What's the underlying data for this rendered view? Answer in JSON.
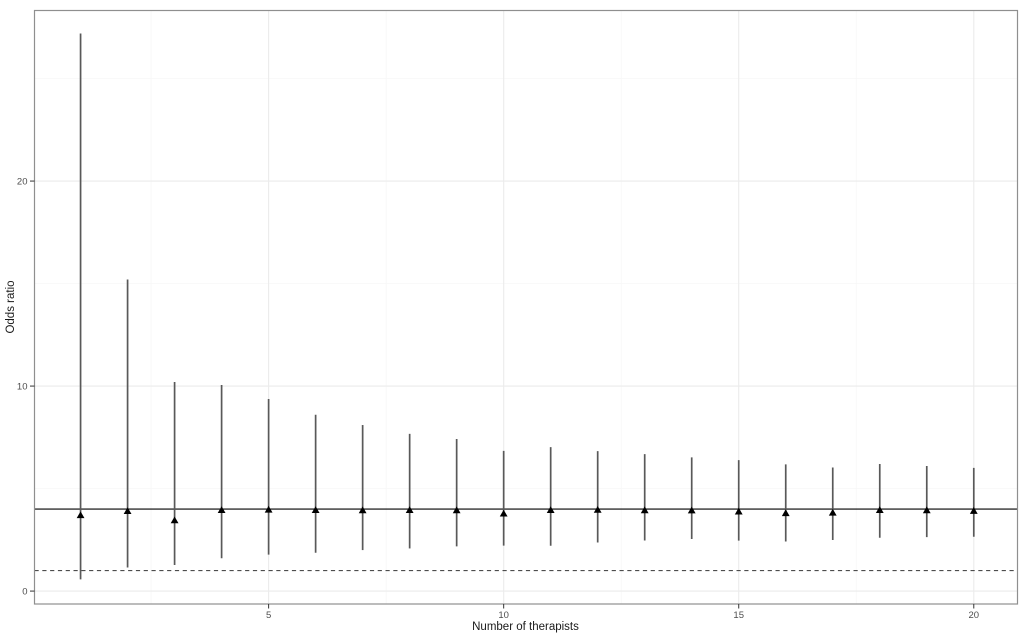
{
  "chart_data": {
    "type": "scatter",
    "subtype": "point-with-interval",
    "title": "",
    "xlabel": "Number of therapists",
    "ylabel": "Odds ratio",
    "x": [
      1,
      2,
      3,
      4,
      5,
      6,
      7,
      8,
      9,
      10,
      11,
      12,
      13,
      14,
      15,
      16,
      17,
      18,
      19,
      20
    ],
    "series": [
      {
        "name": "odds-ratio-estimate",
        "marker": "triangle-up",
        "values": [
          3.7,
          3.9,
          3.45,
          3.95,
          3.97,
          3.95,
          3.94,
          3.95,
          3.94,
          3.78,
          3.95,
          3.96,
          3.94,
          3.93,
          3.88,
          3.8,
          3.82,
          3.95,
          3.94,
          3.91
        ]
      }
    ],
    "ci_low": [
      0.57,
      1.15,
      1.27,
      1.6,
      1.78,
      1.87,
      2.0,
      2.08,
      2.18,
      2.22,
      2.21,
      2.37,
      2.47,
      2.54,
      2.46,
      2.42,
      2.49,
      2.6,
      2.63,
      2.65
    ],
    "ci_high": [
      27.2,
      15.2,
      10.2,
      10.05,
      9.37,
      8.6,
      8.1,
      7.67,
      7.42,
      6.84,
      7.02,
      6.83,
      6.68,
      6.52,
      6.39,
      6.18,
      6.03,
      6.2,
      6.1,
      6.01
    ],
    "reference_lines": [
      {
        "value": 4.0,
        "style": "solid",
        "color": "#000000"
      },
      {
        "value": 1.0,
        "style": "dashed",
        "color": "#4d4d4d"
      }
    ],
    "x_ticks": [
      5,
      10,
      15,
      20
    ],
    "y_ticks": [
      0,
      10,
      20
    ],
    "x_minor": [
      2.5,
      7.5,
      12.5,
      17.5
    ],
    "y_minor": [
      5,
      15,
      25
    ],
    "xlim": [
      0.02,
      20.93
    ],
    "ylim": [
      -0.63,
      28.32
    ],
    "grid": "on",
    "legend_position": "none"
  },
  "colors": {
    "background": "#ffffff",
    "panel_border": "#8f8f8f",
    "grid_major": "#ebebeb",
    "grid_minor": "#f6f6f6",
    "errorbar": "#595959",
    "marker": "#000000",
    "tick": "#333333",
    "tick_label": "#4d4d4d",
    "axis_title": "#1a1a1a"
  }
}
